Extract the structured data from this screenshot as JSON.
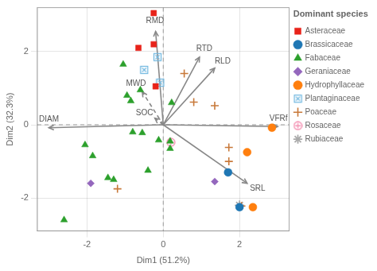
{
  "chart_data": {
    "type": "scatter",
    "title": "",
    "xlabel": "Dim1 (51.2%)",
    "ylabel": "Dim2 (32.3%)",
    "xlim": [
      -3.3,
      3.3
    ],
    "ylim": [
      -2.9,
      3.2
    ],
    "xticks": [
      -2,
      0,
      2
    ],
    "yticks": [
      -2,
      0,
      2
    ],
    "grid": true,
    "legend": "right",
    "legend_title": "Dominant species",
    "series": [
      {
        "name": "Asteraceae",
        "color": "#e8231a",
        "marker": "square",
        "values": [
          [
            -0.25,
            3.05
          ],
          [
            -0.25,
            2.2
          ],
          [
            -0.65,
            2.1
          ],
          [
            -0.2,
            1.05
          ]
        ]
      },
      {
        "name": "Brassicaceae",
        "color": "#1f77b4",
        "marker": "circle",
        "values": [
          [
            1.7,
            -1.3
          ],
          [
            2.0,
            -2.25
          ]
        ]
      },
      {
        "name": "Fabaceae",
        "color": "#2ca02c",
        "marker": "triangle",
        "values": [
          [
            -2.6,
            -2.6
          ],
          [
            -2.05,
            -0.55
          ],
          [
            -1.85,
            -0.85
          ],
          [
            -1.45,
            -1.45
          ],
          [
            -1.3,
            -1.5
          ],
          [
            -1.05,
            1.65
          ],
          [
            -0.95,
            0.8
          ],
          [
            -0.85,
            0.65
          ],
          [
            -0.8,
            -0.2
          ],
          [
            -0.6,
            0.95
          ],
          [
            -0.55,
            -0.22
          ],
          [
            -0.4,
            -1.25
          ],
          [
            -0.12,
            -0.42
          ],
          [
            0.18,
            -0.65
          ],
          [
            0.18,
            -0.45
          ],
          [
            0.22,
            0.6
          ]
        ]
      },
      {
        "name": "Geraniaceae",
        "color": "#9467bd",
        "marker": "diamond",
        "values": [
          [
            -1.9,
            -1.6
          ],
          [
            1.35,
            -1.55
          ]
        ]
      },
      {
        "name": "Hydrophyllaceae",
        "color": "#ff7f0e",
        "marker": "circle",
        "values": [
          [
            2.2,
            -0.75
          ],
          [
            2.35,
            -2.25
          ],
          [
            2.85,
            -0.08
          ]
        ]
      },
      {
        "name": "Plantaginaceae",
        "color": "#74b9e0",
        "marker": "x_box",
        "values": [
          [
            -0.5,
            1.5
          ],
          [
            -0.15,
            1.85
          ],
          [
            -0.08,
            1.15
          ]
        ]
      },
      {
        "name": "Poaceae",
        "color": "#c8793a",
        "marker": "plus",
        "values": [
          [
            -1.2,
            -1.75
          ],
          [
            0.55,
            1.4
          ],
          [
            0.8,
            0.62
          ],
          [
            1.35,
            0.52
          ],
          [
            1.72,
            -0.62
          ],
          [
            1.72,
            -1.0
          ],
          [
            2.05,
            -2.22
          ]
        ]
      },
      {
        "name": "Rosaceae",
        "color": "#f48fb1",
        "marker": "circle_plus",
        "values": [
          [
            0.2,
            -0.48
          ]
        ]
      },
      {
        "name": "Rubiaceae",
        "color": "#aaaaaa",
        "marker": "star",
        "values": [
          [
            2.0,
            -2.2
          ]
        ]
      }
    ],
    "annotations": [
      {
        "kind": "vline",
        "x": 0,
        "color": "#999999",
        "line_style": "dashed"
      },
      {
        "kind": "hline",
        "y": 0,
        "color": "#999999",
        "line_style": "dashed"
      },
      {
        "kind": "arrow",
        "text": "RMD",
        "x0": 0,
        "y0": 0,
        "x": -0.2,
        "y": 2.55,
        "color": "#888888",
        "line_style": "solid"
      },
      {
        "kind": "arrow",
        "text": "RTD",
        "x0": 0,
        "y0": 0,
        "x": 0.95,
        "y": 1.85,
        "color": "#888888",
        "line_style": "solid"
      },
      {
        "kind": "arrow",
        "text": "RLD",
        "x0": 0,
        "y0": 0,
        "x": 1.35,
        "y": 1.55,
        "color": "#888888",
        "line_style": "solid"
      },
      {
        "kind": "arrow",
        "text": "MWD",
        "x0": 0,
        "y0": 0,
        "x": -0.55,
        "y": 0.9,
        "color": "#888888",
        "line_style": "dashed"
      },
      {
        "kind": "arrow",
        "text": "SOC",
        "x0": 0,
        "y0": 0,
        "x": -0.22,
        "y": 0.18,
        "color": "#888888",
        "line_style": "dashed"
      },
      {
        "kind": "arrow",
        "text": "DIAM",
        "x0": 0,
        "y0": 0,
        "x": -3.0,
        "y": -0.08,
        "color": "#888888",
        "line_style": "solid"
      },
      {
        "kind": "arrow",
        "text": "VFRf",
        "x0": 0,
        "y0": 0,
        "x": 3.0,
        "y": -0.05,
        "color": "#888888",
        "line_style": "solid"
      },
      {
        "kind": "arrow",
        "text": "SRL",
        "x0": 0,
        "y0": 0,
        "x": 2.2,
        "y": -1.6,
        "color": "#888888",
        "line_style": "solid"
      }
    ]
  }
}
